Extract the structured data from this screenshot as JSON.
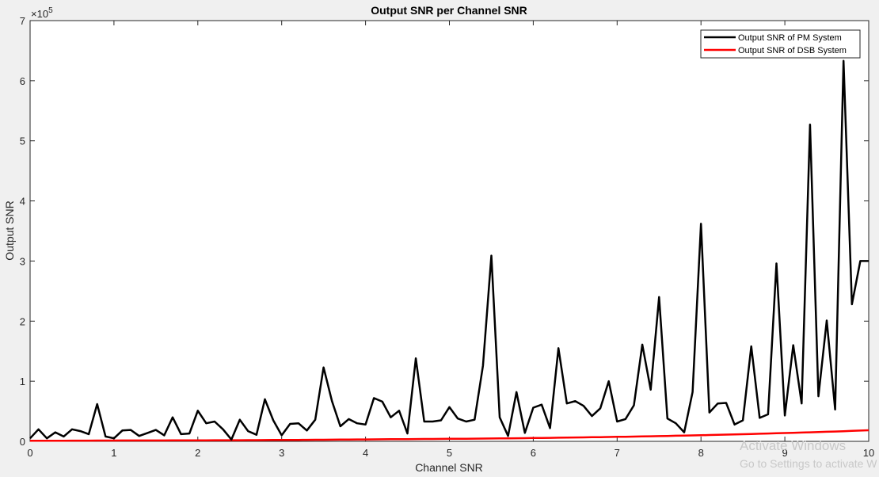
{
  "chart_data": {
    "type": "line",
    "title": "Output SNR per Channel SNR",
    "xlabel": "Channel SNR",
    "ylabel": "Output SNR",
    "y_exponent_label": "×10",
    "y_exponent_power": "5",
    "xlim": [
      0,
      10
    ],
    "ylim": [
      0,
      7
    ],
    "xticks": [
      "0",
      "1",
      "2",
      "3",
      "4",
      "5",
      "6",
      "7",
      "8",
      "9",
      "10"
    ],
    "yticks": [
      "0",
      "1",
      "2",
      "3",
      "4",
      "5",
      "6",
      "7"
    ],
    "grid": false,
    "legend_position": "top-right",
    "x": [
      0,
      0.1,
      0.2,
      0.3,
      0.4,
      0.5,
      0.6,
      0.7,
      0.8,
      0.9,
      1.0,
      1.1,
      1.2,
      1.3,
      1.4,
      1.5,
      1.6,
      1.7,
      1.8,
      1.9,
      2.0,
      2.1,
      2.2,
      2.3,
      2.4,
      2.5,
      2.6,
      2.7,
      2.8,
      2.9,
      3.0,
      3.1,
      3.2,
      3.3,
      3.4,
      3.5,
      3.6,
      3.7,
      3.8,
      3.9,
      4.0,
      4.1,
      4.2,
      4.3,
      4.4,
      4.5,
      4.6,
      4.7,
      4.8,
      4.9,
      5.0,
      5.1,
      5.2,
      5.3,
      5.4,
      5.5,
      5.6,
      5.7,
      5.8,
      5.9,
      6.0,
      6.1,
      6.2,
      6.3,
      6.4,
      6.5,
      6.6,
      6.7,
      6.8,
      6.9,
      7.0,
      7.1,
      7.2,
      7.3,
      7.4,
      7.5,
      7.6,
      7.7,
      7.8,
      7.9,
      8.0,
      8.1,
      8.2,
      8.3,
      8.4,
      8.5,
      8.6,
      8.7,
      8.8,
      8.9,
      9.0,
      9.1,
      9.2,
      9.3,
      9.4,
      9.5,
      9.6,
      9.7,
      9.8,
      9.9,
      10.0
    ],
    "series": [
      {
        "name": "Output SNR of PM System",
        "color": "#000000",
        "values": [
          0.05,
          0.2,
          0.05,
          0.15,
          0.08,
          0.2,
          0.17,
          0.12,
          0.62,
          0.08,
          0.05,
          0.18,
          0.19,
          0.09,
          0.14,
          0.19,
          0.1,
          0.4,
          0.12,
          0.13,
          0.51,
          0.3,
          0.33,
          0.2,
          0.03,
          0.36,
          0.17,
          0.11,
          0.7,
          0.35,
          0.1,
          0.29,
          0.3,
          0.18,
          0.36,
          1.23,
          0.67,
          0.25,
          0.37,
          0.3,
          0.28,
          0.72,
          0.66,
          0.4,
          0.51,
          0.13,
          1.38,
          0.33,
          0.33,
          0.35,
          0.57,
          0.38,
          0.33,
          0.36,
          1.26,
          3.09,
          0.4,
          0.09,
          0.82,
          0.14,
          0.56,
          0.61,
          0.22,
          1.55,
          0.63,
          0.67,
          0.59,
          0.42,
          0.55,
          1.0,
          0.33,
          0.37,
          0.6,
          1.61,
          0.86,
          2.4,
          0.38,
          0.3,
          0.15,
          0.82,
          3.62,
          0.48,
          0.63,
          0.64,
          0.28,
          0.35,
          1.58,
          0.39,
          0.45,
          2.96,
          0.43,
          1.6,
          0.63,
          5.27,
          0.75,
          2.01,
          0.53,
          6.33,
          2.28,
          3.0,
          3.0
        ]
      },
      {
        "name": "Output SNR of DSB System",
        "color": "#ff0000",
        "values": [
          0.01,
          0.01,
          0.011,
          0.011,
          0.011,
          0.012,
          0.012,
          0.012,
          0.013,
          0.013,
          0.013,
          0.014,
          0.014,
          0.014,
          0.015,
          0.015,
          0.015,
          0.016,
          0.016,
          0.016,
          0.017,
          0.017,
          0.018,
          0.018,
          0.019,
          0.019,
          0.02,
          0.02,
          0.021,
          0.022,
          0.022,
          0.023,
          0.024,
          0.025,
          0.026,
          0.027,
          0.028,
          0.029,
          0.03,
          0.031,
          0.032,
          0.033,
          0.034,
          0.035,
          0.036,
          0.037,
          0.038,
          0.039,
          0.04,
          0.041,
          0.042,
          0.043,
          0.044,
          0.045,
          0.046,
          0.048,
          0.049,
          0.05,
          0.052,
          0.053,
          0.055,
          0.057,
          0.058,
          0.06,
          0.062,
          0.064,
          0.066,
          0.068,
          0.07,
          0.072,
          0.075,
          0.077,
          0.079,
          0.082,
          0.084,
          0.087,
          0.09,
          0.093,
          0.096,
          0.099,
          0.102,
          0.105,
          0.108,
          0.112,
          0.115,
          0.119,
          0.122,
          0.126,
          0.13,
          0.134,
          0.138,
          0.142,
          0.146,
          0.15,
          0.155,
          0.159,
          0.164,
          0.169,
          0.174,
          0.179,
          0.184
        ]
      }
    ]
  },
  "watermark": {
    "line1": "Activate Windows",
    "line2": "Go to Settings to activate W"
  }
}
